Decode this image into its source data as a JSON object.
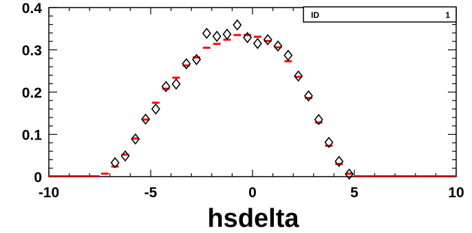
{
  "chart_data": {
    "type": "scatter",
    "xlabel": "hsdelta",
    "ylabel": "",
    "xlim": [
      -10,
      10
    ],
    "ylim": [
      0,
      0.4
    ],
    "x_ticks": [
      "-10",
      "-5",
      "0",
      "5",
      "10"
    ],
    "y_ticks": [
      "0",
      "0.1",
      "0.2",
      "0.3",
      "0.4"
    ],
    "grid": false,
    "legend": "none",
    "stats_box": {
      "label": "ID",
      "value": "1"
    },
    "series": [
      {
        "style": "red horizontal bars",
        "color": "#ff0000",
        "bin_width": 0.5,
        "x": [
          -9.75,
          -9.25,
          -8.75,
          -8.25,
          -7.75,
          -7.25,
          -6.75,
          -6.25,
          -5.75,
          -5.25,
          -4.75,
          -4.25,
          -3.75,
          -3.25,
          -2.75,
          -2.25,
          -1.75,
          -1.25,
          -0.75,
          -0.25,
          0.25,
          0.75,
          1.25,
          1.75,
          2.25,
          2.75,
          3.25,
          3.75,
          4.25,
          4.75,
          5.25,
          5.75,
          6.25,
          6.75,
          7.25,
          7.75,
          8.25,
          8.75,
          9.25,
          9.75
        ],
        "values": [
          0,
          0,
          0,
          0,
          0,
          0.007,
          0.024,
          0.052,
          0.09,
          0.135,
          0.175,
          0.208,
          0.234,
          0.263,
          0.282,
          0.305,
          0.314,
          0.324,
          0.335,
          0.335,
          0.331,
          0.321,
          0.306,
          0.273,
          0.236,
          0.186,
          0.128,
          0.073,
          0.03,
          0.007,
          0,
          0,
          0,
          0,
          0,
          0,
          0,
          0,
          0,
          0
        ]
      },
      {
        "style": "black open diamonds",
        "color": "#000000",
        "x": [
          -6.75,
          -6.25,
          -5.75,
          -5.25,
          -4.75,
          -4.25,
          -3.75,
          -3.25,
          -2.75,
          -2.25,
          -1.75,
          -1.25,
          -0.75,
          -0.25,
          0.25,
          0.75,
          1.25,
          1.75,
          2.25,
          2.75,
          3.25,
          3.75,
          4.25,
          4.75
        ],
        "values": [
          0.033,
          0.049,
          0.089,
          0.136,
          0.16,
          0.213,
          0.219,
          0.267,
          0.277,
          0.339,
          0.332,
          0.337,
          0.359,
          0.329,
          0.315,
          0.324,
          0.309,
          0.287,
          0.238,
          0.191,
          0.135,
          0.081,
          0.036,
          0.006
        ]
      }
    ]
  }
}
